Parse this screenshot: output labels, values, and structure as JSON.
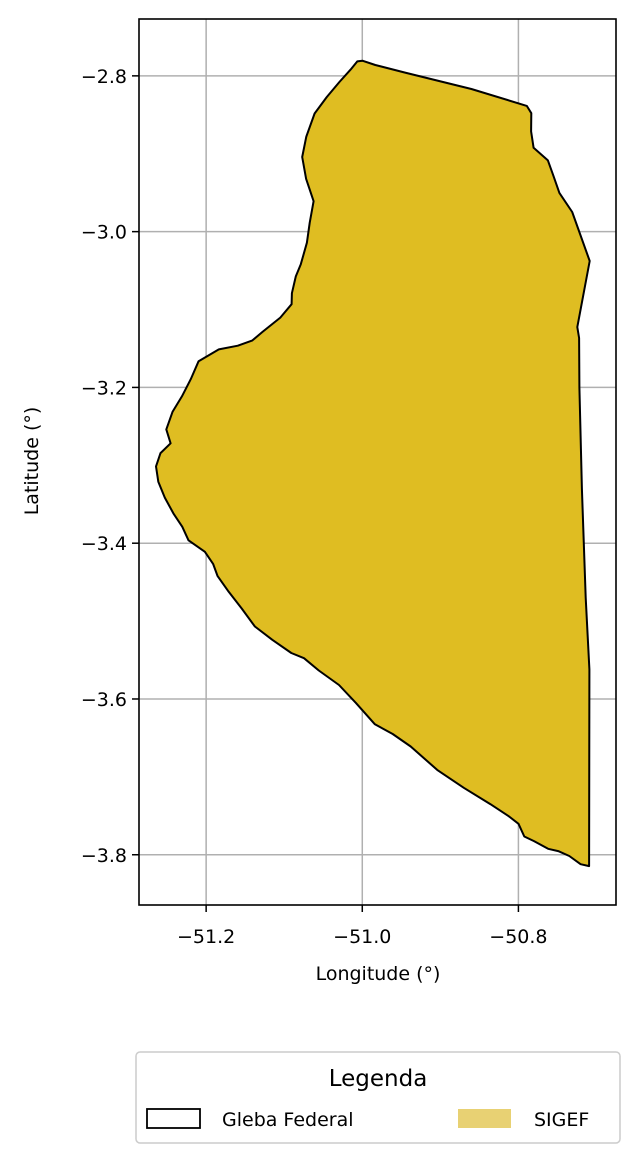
{
  "chart_data": {
    "type": "map",
    "xlabel": "Longitude (°)",
    "ylabel": "Latitude (°)",
    "xlim": [
      -51.286,
      -50.675
    ],
    "ylim": [
      -3.8645,
      -2.727
    ],
    "x_ticks": [
      -51.2,
      -51.0,
      -50.8
    ],
    "x_tick_labels": [
      "−51.2",
      "−51.0",
      "−50.8"
    ],
    "y_ticks": [
      -2.8,
      -3.0,
      -3.2,
      -3.4,
      -3.6,
      -3.8
    ],
    "y_tick_labels": [
      "−2.8",
      "−3.0",
      "−3.2",
      "−3.4",
      "−3.6",
      "−3.8"
    ],
    "grid": true,
    "legend": {
      "title": "Legenda",
      "placement": "bottom-center",
      "entries": [
        {
          "label": "Gleba Federal",
          "style": "outline",
          "edge_color": "#000000"
        },
        {
          "label": "SIGEF",
          "style": "fill",
          "color": "#e8d173"
        }
      ]
    },
    "layers": [
      {
        "name": "SIGEF",
        "fill": "#dfbd22"
      },
      {
        "name": "Gleba Federal",
        "edge": "#000000"
      }
    ],
    "polygon": [
      [
        -51.0064,
        -2.7814
      ],
      [
        -50.9999,
        -2.7806
      ],
      [
        -50.9833,
        -2.786
      ],
      [
        -50.9451,
        -2.7958
      ],
      [
        -50.8602,
        -2.8169
      ],
      [
        -50.7893,
        -2.8386
      ],
      [
        -50.7835,
        -2.848
      ],
      [
        -50.7838,
        -2.8713
      ],
      [
        -50.7806,
        -2.8923
      ],
      [
        -50.7622,
        -2.9086
      ],
      [
        -50.7554,
        -2.9275
      ],
      [
        -50.7475,
        -2.9503
      ],
      [
        -50.7311,
        -2.9748
      ],
      [
        -50.7087,
        -3.0377
      ],
      [
        -50.7246,
        -3.1225
      ],
      [
        -50.7223,
        -3.1366
      ],
      [
        -50.7219,
        -3.2
      ],
      [
        -50.7187,
        -3.33
      ],
      [
        -50.7138,
        -3.47
      ],
      [
        -50.7091,
        -3.562
      ],
      [
        -50.7094,
        -3.8145
      ],
      [
        -50.7203,
        -3.8121
      ],
      [
        -50.7348,
        -3.8016
      ],
      [
        -50.749,
        -3.7953
      ],
      [
        -50.762,
        -3.7923
      ],
      [
        -50.78,
        -3.7824
      ],
      [
        -50.7924,
        -3.7765
      ],
      [
        -50.7999,
        -3.7603
      ],
      [
        -50.8129,
        -3.7501
      ],
      [
        -50.836,
        -3.735
      ],
      [
        -50.87,
        -3.714
      ],
      [
        -50.904,
        -3.691
      ],
      [
        -50.938,
        -3.661
      ],
      [
        -50.961,
        -3.645
      ],
      [
        -50.9838,
        -3.6325
      ],
      [
        -51.0082,
        -3.605
      ],
      [
        -51.0298,
        -3.582
      ],
      [
        -51.0557,
        -3.5634
      ],
      [
        -51.0746,
        -3.5477
      ],
      [
        -51.0909,
        -3.541
      ],
      [
        -51.1153,
        -3.524
      ],
      [
        -51.1376,
        -3.507
      ],
      [
        -51.1543,
        -3.484
      ],
      [
        -51.171,
        -3.4625
      ],
      [
        -51.1854,
        -3.442
      ],
      [
        -51.191,
        -3.4268
      ],
      [
        -51.2016,
        -3.4111
      ],
      [
        -51.2226,
        -3.3963
      ],
      [
        -51.2305,
        -3.3789
      ],
      [
        -51.242,
        -3.3617
      ],
      [
        -51.253,
        -3.3414
      ],
      [
        -51.2613,
        -3.321
      ],
      [
        -51.2642,
        -3.3014
      ],
      [
        -51.2584,
        -3.2843
      ],
      [
        -51.2455,
        -3.2718
      ],
      [
        -51.251,
        -3.2539
      ],
      [
        -51.2431,
        -3.2314
      ],
      [
        -51.231,
        -3.2115
      ],
      [
        -51.2196,
        -3.1893
      ],
      [
        -51.2097,
        -3.1663
      ],
      [
        -51.1838,
        -3.1512
      ],
      [
        -51.1595,
        -3.1465
      ],
      [
        -51.1411,
        -3.1399
      ],
      [
        -51.1278,
        -3.1287
      ],
      [
        -51.105,
        -3.1103
      ],
      [
        -51.0905,
        -3.0931
      ],
      [
        -51.0901,
        -3.079
      ],
      [
        -51.0851,
        -3.0575
      ],
      [
        -51.0787,
        -3.0418
      ],
      [
        -51.0709,
        -3.0142
      ],
      [
        -51.0673,
        -2.9886
      ],
      [
        -51.0623,
        -2.9609
      ],
      [
        -51.072,
        -2.9322
      ],
      [
        -51.0769,
        -2.9042
      ],
      [
        -51.0717,
        -2.878
      ],
      [
        -51.0611,
        -2.8483
      ],
      [
        -51.0454,
        -2.8271
      ],
      [
        -51.0293,
        -2.8079
      ],
      [
        -51.015,
        -2.792
      ]
    ]
  }
}
